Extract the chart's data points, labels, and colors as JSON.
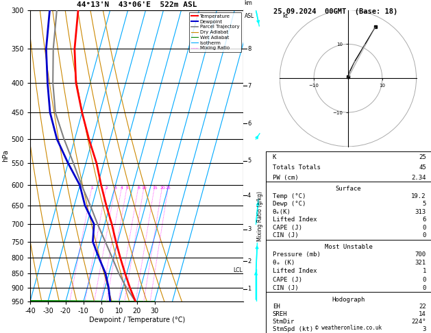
{
  "title_left": "44°13'N  43°06'E  522m ASL",
  "title_right": "25.09.2024  00GMT  (Base: 18)",
  "xlabel": "Dewpoint / Temperature (°C)",
  "ylabel_left": "hPa",
  "pressure_levels": [
    300,
    350,
    400,
    450,
    500,
    550,
    600,
    650,
    700,
    750,
    800,
    850,
    900,
    950
  ],
  "T_min": -40,
  "T_max": 35,
  "P_min": 300,
  "P_max": 950,
  "skew": 45,
  "background_color": "#ffffff",
  "temp_profile": {
    "pressure": [
      950,
      900,
      850,
      800,
      750,
      700,
      650,
      600,
      550,
      500,
      450,
      400,
      350,
      300
    ],
    "temp": [
      19.2,
      14.0,
      9.0,
      4.0,
      -1.0,
      -6.0,
      -12.0,
      -18.0,
      -24.0,
      -32.0,
      -40.0,
      -48.0,
      -54.0,
      -58.0
    ]
  },
  "dewp_profile": {
    "pressure": [
      950,
      900,
      850,
      800,
      750,
      700,
      650,
      600,
      550,
      500,
      450,
      400,
      350,
      300
    ],
    "dewp": [
      5.0,
      2.0,
      -2.0,
      -8.0,
      -14.0,
      -16.0,
      -24.0,
      -30.0,
      -40.0,
      -50.0,
      -58.0,
      -64.0,
      -70.0,
      -74.0
    ]
  },
  "parcel_profile": {
    "pressure": [
      950,
      900,
      850,
      800,
      750,
      700,
      650,
      600,
      550,
      500,
      450,
      400,
      350,
      300
    ],
    "temp": [
      19.2,
      12.0,
      5.5,
      -0.5,
      -7.0,
      -14.0,
      -21.0,
      -29.0,
      -37.0,
      -46.0,
      -55.0,
      -61.0,
      -66.0,
      -70.0
    ]
  },
  "lcl_pressure": 840,
  "wind_profile_p": [
    950,
    850,
    700,
    500,
    300
  ],
  "wind_speed": [
    3,
    5,
    10,
    15,
    25
  ],
  "wind_dir": [
    180,
    200,
    220,
    260,
    300
  ],
  "stats": {
    "K": 25,
    "Totals_Totals": 45,
    "PW_cm": 2.34,
    "Surface_Temp": 19.2,
    "Surface_Dewp": 5,
    "Surface_ThetaE": 313,
    "Surface_LI": 6,
    "Surface_CAPE": 0,
    "Surface_CIN": 0,
    "MU_Pressure": 700,
    "MU_ThetaE": 321,
    "MU_LI": 1,
    "MU_CAPE": 0,
    "MU_CIN": 0,
    "EH": 22,
    "SREH": 14,
    "StmDir": 224,
    "StmSpd": 3
  },
  "hodo_u": [
    0.0,
    0.5,
    2.0,
    5.0,
    8.0
  ],
  "hodo_v": [
    0.5,
    2.0,
    5.0,
    10.0,
    15.0
  ],
  "colors": {
    "temperature": "#ff0000",
    "dewpoint": "#0000cc",
    "parcel": "#808080",
    "dry_adiabat": "#cc8800",
    "wet_adiabat": "#008800",
    "isotherm": "#00aaff",
    "mixing_ratio": "#ff00ff",
    "background": "#ffffff",
    "grid": "#000000"
  },
  "km_vals": [
    1,
    2,
    3,
    4,
    5,
    6,
    7,
    8
  ],
  "km_pressures": [
    905,
    810,
    715,
    625,
    545,
    470,
    405,
    350
  ],
  "isotherm_Ts": [
    -40,
    -30,
    -20,
    -10,
    0,
    10,
    20,
    30,
    40
  ],
  "dry_T0s": [
    -40,
    -30,
    -20,
    -10,
    0,
    10,
    20,
    30,
    40,
    50
  ],
  "wet_T0s": [
    -20,
    -10,
    0,
    10,
    20,
    30
  ],
  "mr_values": [
    1,
    2,
    3,
    4,
    5,
    8,
    10,
    15,
    20,
    25
  ]
}
